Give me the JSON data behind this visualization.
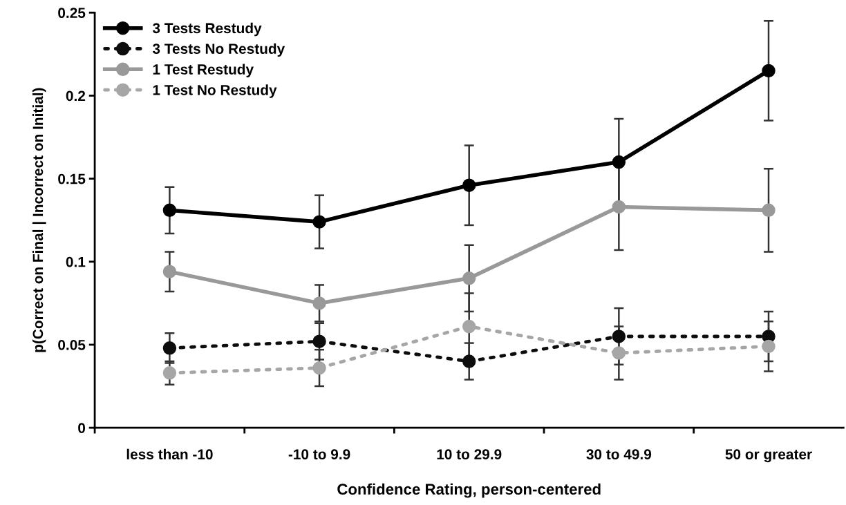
{
  "chart_data": {
    "type": "line",
    "xlabel": "Confidence Rating, person-centered",
    "ylabel": "p(Correct on Final | Incorrect on Initial)",
    "categories": [
      "less than -10",
      "-10 to 9.9",
      "10 to 29.9",
      "30 to 49.9",
      "50 or greater"
    ],
    "ylim": [
      0,
      0.25
    ],
    "yticks": [
      0,
      0.05,
      0.1,
      0.15,
      0.2,
      0.25
    ],
    "grid": false,
    "legend": "top left",
    "marker": "circle",
    "series": [
      {
        "name": "3 Tests Restudy",
        "color": "#000000",
        "line_style": "solid",
        "values": [
          0.131,
          0.124,
          0.146,
          0.16,
          0.215
        ],
        "errors": [
          0.014,
          0.016,
          0.024,
          0.026,
          0.03
        ]
      },
      {
        "name": "3 Tests No Restudy",
        "color": "#0d0d0d",
        "line_style": "dotted",
        "values": [
          0.048,
          0.052,
          0.04,
          0.055,
          0.055
        ],
        "errors": [
          0.009,
          0.011,
          0.011,
          0.017,
          0.015
        ]
      },
      {
        "name": "1 Test Restudy",
        "color": "#999999",
        "line_style": "solid",
        "values": [
          0.094,
          0.075,
          0.09,
          0.133,
          0.131
        ],
        "errors": [
          0.012,
          0.011,
          0.02,
          0.026,
          0.025
        ]
      },
      {
        "name": "1 Test No Restudy",
        "color": "#a6a6a6",
        "line_style": "dotted",
        "values": [
          0.033,
          0.036,
          0.061,
          0.045,
          0.049
        ],
        "errors": [
          0.007,
          0.011,
          0.02,
          0.016,
          0.015
        ]
      }
    ]
  }
}
